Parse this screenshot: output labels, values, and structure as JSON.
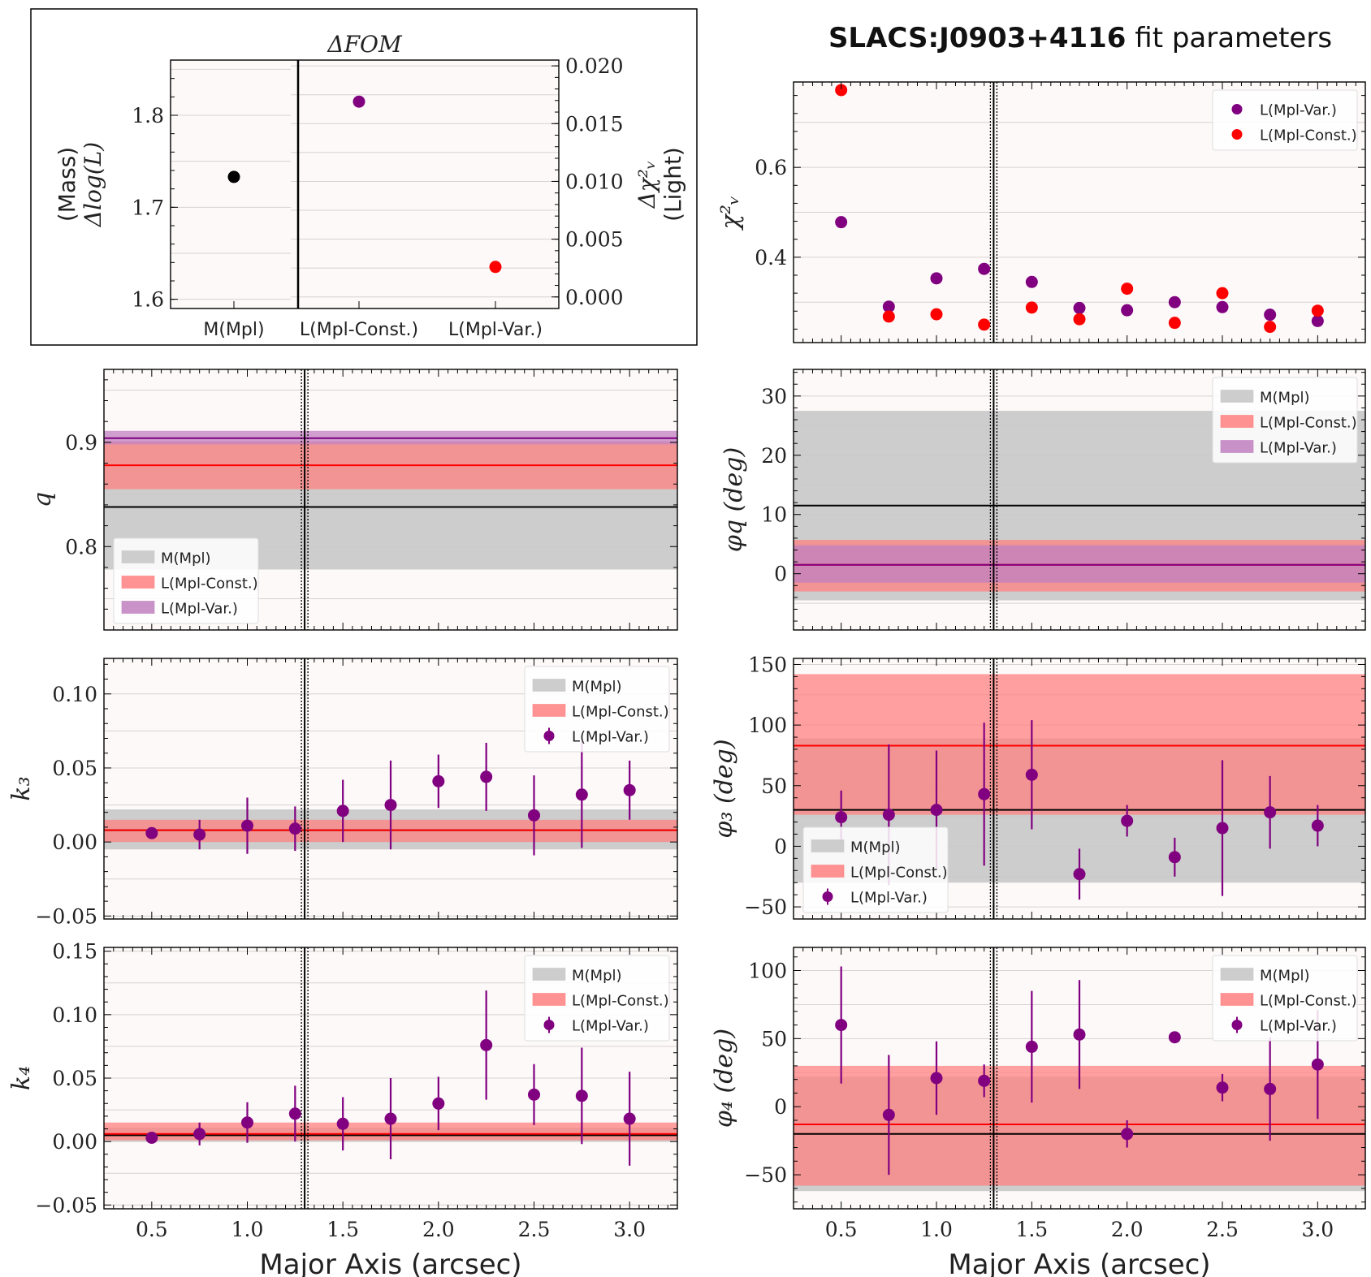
{
  "title": {
    "bold": "SLACS:J0903+4116",
    "rest": " fit parameters"
  },
  "colors": {
    "mass": "#000000",
    "light_const": "#ff0000",
    "light_var": "#800080",
    "band_mass": "#c8c8c8",
    "band_const": "#ff8080",
    "band_var": "#c080c0",
    "panel_bg": "#fdf9f9"
  },
  "chart_data": [
    {
      "id": "fom",
      "type": "scatter",
      "title": "ΔFOM",
      "ylabel_left": [
        "(Mass)",
        "Δlog(L)"
      ],
      "ylabel_right": [
        "Δχ²ᵥ",
        "(Light)"
      ],
      "categories": [
        "M(Mpl)",
        "L(Mpl-Const.)",
        "L(Mpl-Var.)"
      ],
      "ylim_left": [
        1.59,
        1.86
      ],
      "ylim_right": [
        -0.001,
        0.0205
      ],
      "yticks_left": [
        1.6,
        1.7,
        1.8
      ],
      "ytick_labels_left": [
        "1.6",
        "1.7",
        "1.8"
      ],
      "yticks_right": [
        0.0,
        0.005,
        0.01,
        0.015,
        0.02
      ],
      "ytick_labels_right": [
        "0.000",
        "0.005",
        "0.010",
        "0.015",
        "0.020"
      ],
      "points": [
        {
          "category": "M(Mpl)",
          "axis": "left",
          "value": 1.733,
          "color": "#000000"
        },
        {
          "category": "L(Mpl-Const.)",
          "axis": "right",
          "value": 0.0169,
          "color": "#800080"
        },
        {
          "category": "L(Mpl-Var.)",
          "axis": "right",
          "value": 0.0026,
          "color": "#ff0000"
        }
      ]
    },
    {
      "id": "chi2",
      "type": "scatter",
      "ylabel": "χ²ᵥ",
      "xlim": [
        0.25,
        3.25
      ],
      "ylim": [
        0.21,
        0.79
      ],
      "yticks": [
        0.4,
        0.6
      ],
      "ytick_labels": [
        "0.4",
        "0.6"
      ],
      "vline": 1.3,
      "legend": [
        "L(Mpl-Var.)",
        "L(Mpl-Const.)"
      ],
      "legend_position": "upper-right",
      "x": [
        0.5,
        0.75,
        1.0,
        1.25,
        1.5,
        1.75,
        2.0,
        2.25,
        2.5,
        2.75,
        3.0
      ],
      "series": [
        {
          "name": "L(Mpl-Var.)",
          "values": [
            0.478,
            0.29,
            0.353,
            0.374,
            0.345,
            0.287,
            0.282,
            0.3,
            0.289,
            0.272,
            0.258
          ]
        },
        {
          "name": "L(Mpl-Const.)",
          "values": [
            0.772,
            0.268,
            0.273,
            0.25,
            0.288,
            0.262,
            0.33,
            0.254,
            0.32,
            0.245,
            0.281
          ]
        }
      ]
    },
    {
      "id": "q",
      "type": "bands",
      "ylabel": "q",
      "xlim": [
        0.25,
        3.25
      ],
      "ylim": [
        0.72,
        0.97
      ],
      "yticks": [
        0.8,
        0.9
      ],
      "ytick_labels": [
        "0.8",
        "0.9"
      ],
      "vline": 1.3,
      "legend_position": "lower-left",
      "bands": [
        {
          "name": "M(Mpl)",
          "center": 0.838,
          "low": 0.778,
          "high": 0.898
        },
        {
          "name": "L(Mpl-Const.)",
          "center": 0.878,
          "low": 0.855,
          "high": 0.901
        },
        {
          "name": "L(Mpl-Var.)",
          "center": 0.904,
          "low": 0.898,
          "high": 0.911
        }
      ]
    },
    {
      "id": "phiq",
      "type": "bands",
      "ylabel": "φ_q (deg)",
      "xlim": [
        0.25,
        3.25
      ],
      "ylim": [
        -9.5,
        34.5
      ],
      "yticks": [
        0,
        10,
        20,
        30
      ],
      "ytick_labels": [
        "0",
        "10",
        "20",
        "30"
      ],
      "vline": 1.3,
      "legend_position": "upper-right",
      "bands": [
        {
          "name": "M(Mpl)",
          "center": 11.5,
          "low": -4.5,
          "high": 27.5
        },
        {
          "name": "L(Mpl-Const.)",
          "center": 1.5,
          "low": -3.0,
          "high": 5.7
        },
        {
          "name": "L(Mpl-Var.)",
          "center": 1.5,
          "low": -1.5,
          "high": 4.8
        }
      ]
    },
    {
      "id": "k3",
      "type": "bands+errorbar",
      "ylabel": "k₃",
      "xlim": [
        0.25,
        3.25
      ],
      "ylim": [
        -0.052,
        0.124
      ],
      "yticks": [
        -0.05,
        0.0,
        0.05,
        0.1
      ],
      "ytick_labels": [
        "−0.05",
        "0.00",
        "0.05",
        "0.10"
      ],
      "vline": 1.3,
      "legend_position": "upper-right",
      "bands": [
        {
          "name": "M(Mpl)",
          "center": 0.008,
          "low": -0.005,
          "high": 0.022
        },
        {
          "name": "L(Mpl-Const.)",
          "center": 0.008,
          "low": 0.0,
          "high": 0.015
        }
      ],
      "series": [
        {
          "name": "L(Mpl-Var.)",
          "x": [
            0.5,
            0.75,
            1.0,
            1.25,
            1.5,
            1.75,
            2.0,
            2.25,
            2.5,
            2.75,
            3.0
          ],
          "values": [
            0.006,
            0.005,
            0.011,
            0.009,
            0.021,
            0.025,
            0.041,
            0.044,
            0.018,
            0.032,
            0.035
          ],
          "err": [
            0.004,
            0.01,
            0.019,
            0.015,
            0.021,
            0.03,
            0.018,
            0.023,
            0.027,
            0.036,
            0.02
          ]
        }
      ]
    },
    {
      "id": "phi3",
      "type": "bands+errorbar",
      "ylabel": "φ₃ (deg)",
      "xlim": [
        0.25,
        3.25
      ],
      "ylim": [
        -60,
        155
      ],
      "yticks": [
        -50,
        0,
        50,
        100,
        150
      ],
      "ytick_labels": [
        "−50",
        "0",
        "50",
        "100",
        "150"
      ],
      "vline": 1.3,
      "legend_position": "lower-left",
      "bands": [
        {
          "name": "M(Mpl)",
          "center": 30,
          "low": -30,
          "high": 89
        },
        {
          "name": "L(Mpl-Const.)",
          "center": 83,
          "low": 26,
          "high": 142
        }
      ],
      "series": [
        {
          "name": "L(Mpl-Var.)",
          "x": [
            0.5,
            0.75,
            1.0,
            1.25,
            1.5,
            1.75,
            2.0,
            2.25,
            2.5,
            2.75,
            3.0
          ],
          "values": [
            24,
            26,
            30,
            43,
            59,
            -23,
            21,
            -9,
            15,
            28,
            17
          ],
          "err": [
            22,
            58,
            49,
            59,
            45,
            21,
            13,
            16,
            56,
            30,
            17
          ]
        }
      ]
    },
    {
      "id": "k4",
      "type": "bands+errorbar",
      "ylabel": "k₄",
      "xlim": [
        0.25,
        3.25
      ],
      "ylim": [
        -0.053,
        0.153
      ],
      "yticks": [
        -0.05,
        0.0,
        0.05,
        0.1,
        0.15
      ],
      "ytick_labels": [
        "−0.05",
        "0.00",
        "0.05",
        "0.10",
        "0.15"
      ],
      "xticks": [
        0.5,
        1.0,
        1.5,
        2.0,
        2.5,
        3.0
      ],
      "xtick_labels": [
        "0.5",
        "1.0",
        "1.5",
        "2.0",
        "2.5",
        "3.0"
      ],
      "xlabel": "Major Axis (arcsec)",
      "vline": 1.3,
      "legend_position": "upper-right",
      "bands": [
        {
          "name": "M(Mpl)",
          "center": 0.005,
          "low": 0.0,
          "high": 0.011
        },
        {
          "name": "L(Mpl-Const.)",
          "center": 0.006,
          "low": 0.001,
          "high": 0.015
        }
      ],
      "series": [
        {
          "name": "L(Mpl-Var.)",
          "x": [
            0.5,
            0.75,
            1.0,
            1.25,
            1.5,
            1.75,
            2.0,
            2.25,
            2.5,
            2.75,
            3.0
          ],
          "values": [
            0.003,
            0.006,
            0.015,
            0.022,
            0.014,
            0.018,
            0.03,
            0.076,
            0.037,
            0.036,
            0.018
          ],
          "err": [
            0.002,
            0.009,
            0.016,
            0.022,
            0.021,
            0.032,
            0.021,
            0.043,
            0.024,
            0.038,
            0.037
          ]
        }
      ]
    },
    {
      "id": "phi4",
      "type": "bands+errorbar",
      "ylabel": "φ₄ (deg)",
      "xlim": [
        0.25,
        3.25
      ],
      "ylim": [
        -75,
        117
      ],
      "yticks": [
        -50,
        0,
        50,
        100
      ],
      "ytick_labels": [
        "−50",
        "0",
        "50",
        "100"
      ],
      "xticks": [
        0.5,
        1.0,
        1.5,
        2.0,
        2.5,
        3.0
      ],
      "xtick_labels": [
        "0.5",
        "1.0",
        "1.5",
        "2.0",
        "2.5",
        "3.0"
      ],
      "xlabel": "Major Axis (arcsec)",
      "vline": 1.3,
      "legend_position": "upper-right",
      "bands": [
        {
          "name": "M(Mpl)",
          "center": -20,
          "low": -62,
          "high": 22
        },
        {
          "name": "L(Mpl-Const.)",
          "center": -13,
          "low": -58,
          "high": 30
        }
      ],
      "series": [
        {
          "name": "L(Mpl-Var.)",
          "x": [
            0.5,
            0.75,
            1.0,
            1.25,
            1.5,
            1.75,
            2.0,
            2.25,
            2.5,
            2.75,
            3.0
          ],
          "values": [
            60,
            -6,
            21,
            19,
            44,
            53,
            -20,
            51,
            14,
            13,
            31
          ],
          "err": [
            43,
            44,
            27,
            12,
            41,
            40,
            10,
            4,
            10,
            38,
            40
          ]
        }
      ]
    }
  ]
}
